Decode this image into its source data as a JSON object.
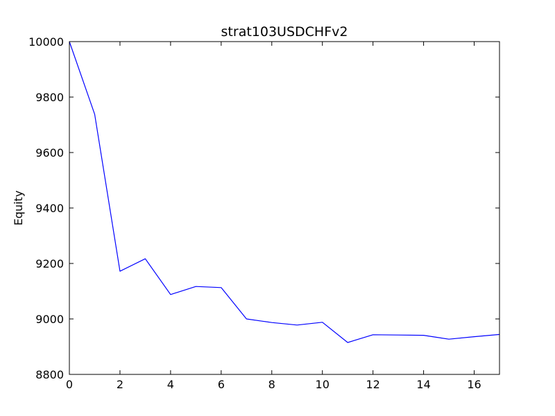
{
  "chart_data": {
    "type": "line",
    "title": "strat103USDCHFv2",
    "xlabel": "",
    "ylabel": "Equity",
    "xlim": [
      0,
      17
    ],
    "ylim": [
      8800,
      10000
    ],
    "xticks": [
      0,
      2,
      4,
      6,
      8,
      10,
      12,
      14,
      16
    ],
    "yticks": [
      8800,
      9000,
      9200,
      9400,
      9600,
      9800,
      10000
    ],
    "grid": false,
    "legend": "none",
    "series": [
      {
        "color": "#0000ff",
        "x": [
          0,
          1,
          2,
          3,
          4,
          5,
          6,
          7,
          8,
          9,
          10,
          11,
          12,
          13,
          14,
          15,
          16,
          17
        ],
        "values": [
          10000,
          9738,
          9172,
          9217,
          9088,
          9117,
          9113,
          9000,
          8987,
          8978,
          8988,
          8915,
          8943,
          8942,
          8941,
          8927,
          8936,
          8944
        ]
      }
    ]
  }
}
